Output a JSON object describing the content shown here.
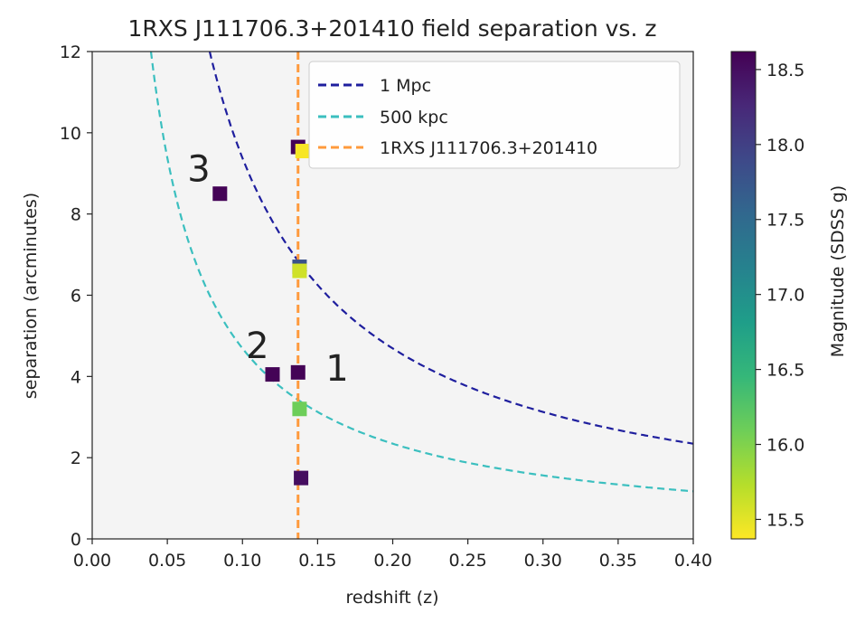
{
  "chart_data": {
    "type": "scatter",
    "title": "1RXS J111706.3+201410  field separation vs. z",
    "xlabel": "redshift (z)",
    "ylabel": "separation (arcminutes)",
    "xlim": [
      0.0,
      0.4
    ],
    "ylim": [
      0,
      12
    ],
    "x_ticks": [
      "0.00",
      "0.05",
      "0.10",
      "0.15",
      "0.20",
      "0.25",
      "0.30",
      "0.35",
      "0.40"
    ],
    "y_ticks": [
      "0",
      "2",
      "4",
      "6",
      "8",
      "10",
      "12"
    ],
    "background": "#f4f4f4",
    "grid": false,
    "legend_position": "top-right",
    "series": [
      {
        "name": "1 Mpc",
        "kind": "dashed-curve",
        "color": "#1f1f9e",
        "x_start": 0.072
      },
      {
        "name": "500 kpc",
        "kind": "dashed-curve",
        "color": "#3bbfbf",
        "x_start": 0.034
      },
      {
        "name": "1RXS J111706.3+201410",
        "kind": "dashed-vline",
        "color": "#ff9a3c",
        "x": 0.137
      }
    ],
    "points": [
      {
        "x": 0.085,
        "y": 8.5,
        "mag": 18.6
      },
      {
        "x": 0.12,
        "y": 4.05,
        "mag": 18.6
      },
      {
        "x": 0.137,
        "y": 4.1,
        "mag": 18.6
      },
      {
        "x": 0.139,
        "y": 1.5,
        "mag": 18.5
      },
      {
        "x": 0.137,
        "y": 9.65,
        "mag": 18.6
      },
      {
        "x": 0.14,
        "y": 9.55,
        "mag": 15.4
      },
      {
        "x": 0.138,
        "y": 6.7,
        "mag": 17.8
      },
      {
        "x": 0.138,
        "y": 6.6,
        "mag": 15.6
      },
      {
        "x": 0.138,
        "y": 3.2,
        "mag": 16.1
      }
    ],
    "annotations": [
      {
        "text": "3",
        "x": 0.071,
        "y": 8.8
      },
      {
        "text": "2",
        "x": 0.11,
        "y": 4.45
      },
      {
        "text": "1",
        "x": 0.163,
        "y": 3.9
      }
    ],
    "colorbar": {
      "label": "Magnitude (SDSS g)",
      "range": [
        15.37,
        18.62
      ],
      "ticks": [
        "15.5",
        "16.0",
        "16.5",
        "17.0",
        "17.5",
        "18.0",
        "18.5"
      ],
      "colors": [
        "#fde725",
        "#b5de2b",
        "#6ece58",
        "#35b779",
        "#1f9e89",
        "#26828e",
        "#31688e",
        "#3e4989",
        "#482878",
        "#440154"
      ]
    }
  }
}
